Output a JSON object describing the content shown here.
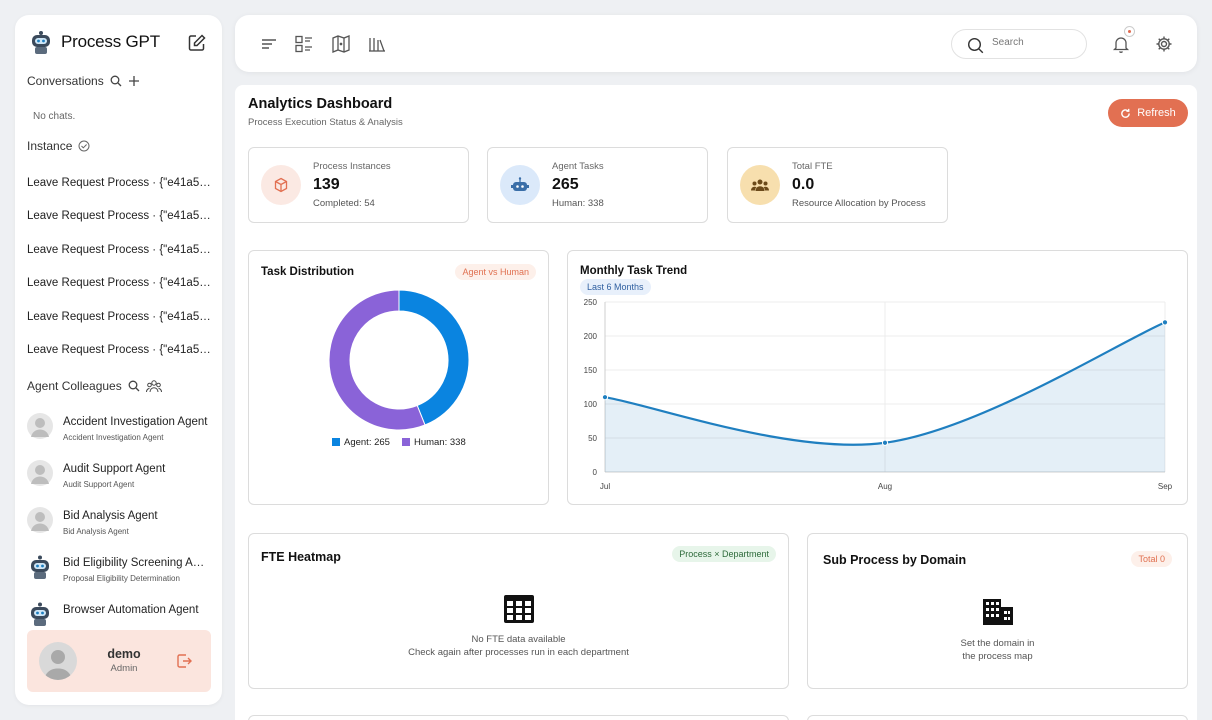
{
  "sidebar": {
    "app_name": "Process GPT",
    "conversations_label": "Conversations",
    "no_chats": "No chats.",
    "instance_label": "Instance",
    "instances": [
      "Leave Request Process · {\"e41a53...",
      "Leave Request Process · {\"e41a53...",
      "Leave Request Process · {\"e41a53...",
      "Leave Request Process · {\"e41a53...",
      "Leave Request Process · {\"e41a53...",
      "Leave Request Process · {\"e41a53..."
    ],
    "agents_label": "Agent Colleagues",
    "agents": [
      {
        "name": "Accident Investigation Agent",
        "role": "Accident Investigation Agent",
        "avatar": "person"
      },
      {
        "name": "Audit Support Agent",
        "role": "Audit Support Agent",
        "avatar": "person"
      },
      {
        "name": "Bid Analysis Agent",
        "role": "Bid Analysis Agent",
        "avatar": "person"
      },
      {
        "name": "Bid Eligibility Screening Agent",
        "role": "Proposal Eligibility Determination",
        "avatar": "robot"
      },
      {
        "name": "Browser Automation Agent",
        "role": "",
        "avatar": "robot"
      }
    ],
    "user": {
      "name": "demo",
      "role": "Admin"
    }
  },
  "topbar": {
    "search_placeholder": "Search",
    "icons": [
      "menu-icon",
      "list-view-icon",
      "map-icon",
      "library-icon",
      "bell-icon",
      "gear-icon"
    ]
  },
  "dashboard": {
    "title": "Analytics Dashboard",
    "subtitle": "Process Execution Status & Analysis",
    "refresh_label": "Refresh",
    "stats": [
      {
        "label": "Process Instances",
        "value": "139",
        "sub": "Completed: 54",
        "color": "#fbe9e3"
      },
      {
        "label": "Agent Tasks",
        "value": "265",
        "sub": "Human: 338",
        "color": "#dbe9fa"
      },
      {
        "label": "Total FTE",
        "value": "0.0",
        "sub": "Resource Allocation by Process",
        "color": "#f7dfae"
      }
    ],
    "task_distribution": {
      "title": "Task Distribution",
      "tag": "Agent vs Human",
      "legend_agent": "Agent: 265",
      "legend_human": "Human: 338"
    },
    "trend": {
      "title": "Monthly Task Trend",
      "tag": "Last 6 Months"
    },
    "heatmap": {
      "title": "FTE Heatmap",
      "tag": "Process × Department",
      "empty_line1": "No FTE data available",
      "empty_line2": "Check again after processes run in each department"
    },
    "subprocess": {
      "title": "Sub Process by Domain",
      "tag": "Total 0",
      "empty_line1": "Set the domain in",
      "empty_line2": "the process map"
    }
  },
  "colors": {
    "accent": "#e27052",
    "agent": "#0a84e0",
    "human": "#8a63d8",
    "line": "#1f7fc0"
  },
  "chart_data": [
    {
      "type": "pie",
      "title": "Task Distribution",
      "labels": [
        "Agent",
        "Human"
      ],
      "values": [
        265,
        338
      ],
      "colors": [
        "#0a84e0",
        "#8a63d8"
      ]
    },
    {
      "type": "area",
      "title": "Monthly Task Trend",
      "x": [
        "Jul",
        "Aug",
        "Sep"
      ],
      "series": [
        {
          "values": [
            110,
            43,
            220
          ]
        }
      ],
      "ylim": [
        0,
        250
      ],
      "yticks": [
        0,
        50,
        100,
        150,
        200,
        250
      ],
      "grid": true
    }
  ]
}
